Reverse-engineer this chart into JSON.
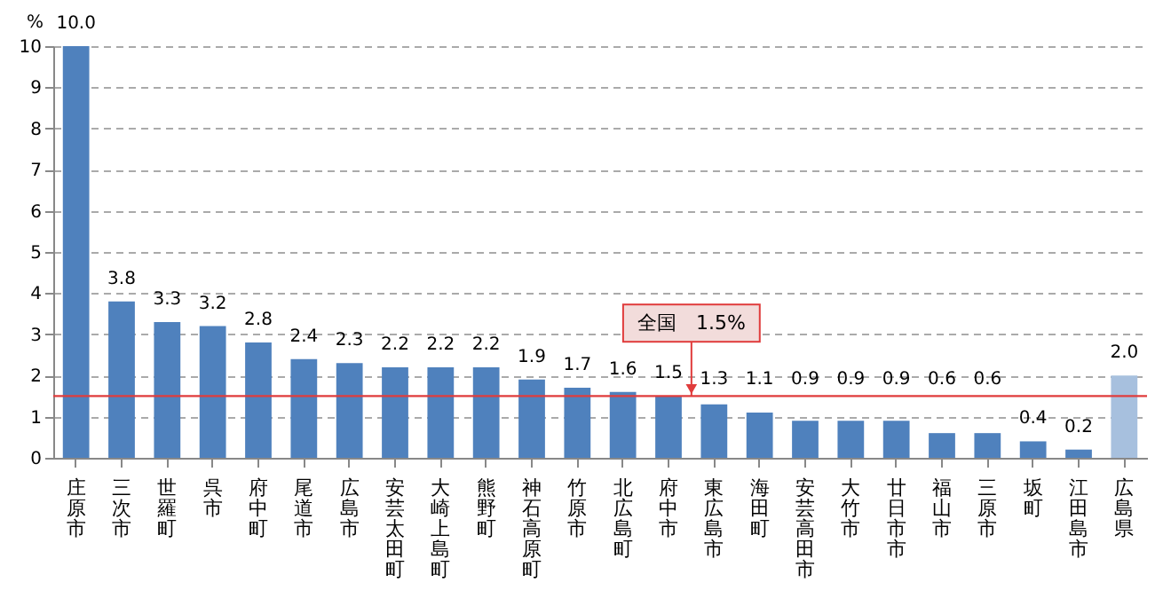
{
  "chart_data": {
    "type": "bar",
    "ylabel": "%",
    "categories": [
      "庄原市",
      "三次市",
      "世羅町",
      "呉市",
      "府中町",
      "尾道市",
      "広島市",
      "安芸太田町",
      "大崎上島町",
      "熊野町",
      "神石高原町",
      "竹原市",
      "北広島町",
      "府中市",
      "東広島市",
      "海田町",
      "安芸高田市",
      "大竹市",
      "廿日市市",
      "福山市",
      "三原市",
      "坂町",
      "江田島市",
      "広島県"
    ],
    "values": [
      10.0,
      3.8,
      3.3,
      3.2,
      2.8,
      2.4,
      2.3,
      2.2,
      2.2,
      2.2,
      1.9,
      1.7,
      1.6,
      1.5,
      1.3,
      1.1,
      0.9,
      0.9,
      0.9,
      0.6,
      0.6,
      0.4,
      0.2,
      2.0
    ],
    "colors": [
      "#4f81bd",
      "#4f81bd",
      "#4f81bd",
      "#4f81bd",
      "#4f81bd",
      "#4f81bd",
      "#4f81bd",
      "#4f81bd",
      "#4f81bd",
      "#4f81bd",
      "#4f81bd",
      "#4f81bd",
      "#4f81bd",
      "#4f81bd",
      "#4f81bd",
      "#4f81bd",
      "#4f81bd",
      "#4f81bd",
      "#4f81bd",
      "#4f81bd",
      "#4f81bd",
      "#4f81bd",
      "#4f81bd",
      "#a7c0de"
    ],
    "value_labels": [
      "10.0",
      "3.8",
      "3.3",
      "3.2",
      "2.8",
      "2.4",
      "2.3",
      "2.2",
      "2.2",
      "2.2",
      "1.9",
      "1.7",
      "1.6",
      "1.5",
      "1.3",
      "1.1",
      "0.9",
      "0.9",
      "0.9",
      "0.6",
      "0.6",
      "0.4",
      "0.2",
      "2.0"
    ],
    "ylim": [
      0,
      10
    ],
    "yticks": [
      0,
      1,
      2,
      3,
      4,
      5,
      6,
      7,
      8,
      9,
      10
    ],
    "grid": "y",
    "data_labels": true,
    "ref_lines": [
      {
        "axis": "y",
        "value": 1.5,
        "label": "全国　1.5%",
        "color": "#e03c3c"
      }
    ]
  }
}
